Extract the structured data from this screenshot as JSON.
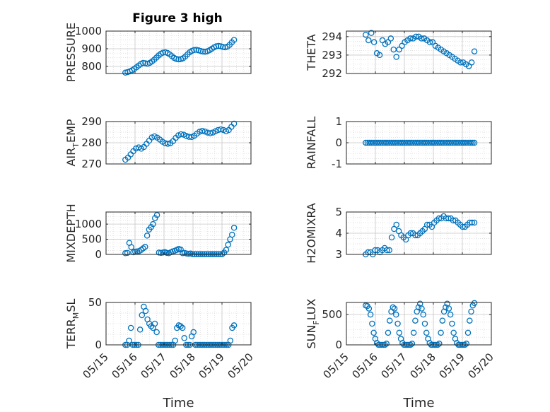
{
  "figure": {
    "title": "Figure 3 high",
    "marker_color": "#0072BD",
    "axis_color": "#262626",
    "grid": "major and minor (dotted)"
  },
  "chart_data": [
    {
      "type": "scatter",
      "ylabel_main": "PRESSURE",
      "ylabel_sub": "",
      "ylabel_tail": "",
      "yticks": [
        "800",
        "900",
        "1000"
      ],
      "ylim": [
        760,
        1000
      ],
      "show_xticks": false,
      "xlabel": "",
      "x_start": "05/15 16:00",
      "x_end": "05/19 10:00",
      "values": [
        765,
        768,
        772,
        778,
        786,
        795,
        805,
        814,
        820,
        818,
        815,
        820,
        828,
        838,
        850,
        862,
        872,
        878,
        880,
        876,
        868,
        858,
        848,
        842,
        840,
        841,
        846,
        856,
        868,
        880,
        888,
        893,
        894,
        891,
        887,
        884,
        883,
        886,
        892,
        900,
        908,
        914,
        916,
        914,
        910,
        908,
        912,
        922,
        936,
        950
      ]
    },
    {
      "type": "scatter",
      "ylabel_main": "THETA",
      "ylabel_sub": "",
      "ylabel_tail": "",
      "yticks": [
        "292",
        "293",
        "294"
      ],
      "ylim": [
        292,
        294.3
      ],
      "show_xticks": false,
      "xlabel": "",
      "x_start": "05/15 16:00",
      "x_end": "05/19 10:00",
      "values": [
        294.1,
        293.8,
        294.2,
        293.7,
        293.1,
        293.0,
        293.8,
        293.6,
        293.7,
        293.9,
        293.3,
        292.9,
        293.3,
        293.5,
        293.7,
        293.8,
        293.9,
        293.9,
        294.0,
        294.0,
        293.9,
        293.9,
        293.8,
        293.7,
        293.7,
        293.5,
        293.4,
        293.3,
        293.2,
        293.1,
        293.0,
        292.9,
        292.8,
        292.7,
        292.6,
        292.6,
        292.5,
        292.4,
        292.6,
        293.2
      ]
    },
    {
      "type": "scatter",
      "ylabel_main": "AIR",
      "ylabel_sub": "T",
      "ylabel_tail": "EMP",
      "yticks": [
        "270",
        "280",
        "290"
      ],
      "ylim": [
        270,
        290
      ],
      "show_xticks": false,
      "xlabel": "",
      "x_start": "05/15 16:00",
      "x_end": "05/19 10:00",
      "values": [
        272,
        273,
        274.5,
        276,
        277.3,
        277.8,
        277.2,
        278,
        279.5,
        281,
        282.5,
        283,
        282.4,
        281.5,
        280.5,
        279.8,
        279.5,
        279.8,
        280.8,
        282.3,
        283.5,
        284,
        283.8,
        283.2,
        282.8,
        282.7,
        283.3,
        284.3,
        285.2,
        285.6,
        285.3,
        284.8,
        284.5,
        284.8,
        285.4,
        286,
        286.3,
        286,
        285.4,
        286,
        287.5,
        289
      ]
    },
    {
      "type": "scatter",
      "ylabel_main": "RAINFALL",
      "ylabel_sub": "",
      "ylabel_tail": "",
      "yticks": [
        "-1",
        "0",
        "1"
      ],
      "ylim": [
        -1,
        1
      ],
      "show_xticks": false,
      "xlabel": "",
      "x_start": "05/15 16:00",
      "x_end": "05/19 10:00",
      "values": [
        0,
        0,
        0,
        0,
        0,
        0,
        0,
        0,
        0,
        0,
        0,
        0,
        0,
        0,
        0,
        0,
        0,
        0,
        0,
        0,
        0,
        0,
        0,
        0,
        0,
        0,
        0,
        0,
        0,
        0,
        0,
        0,
        0,
        0,
        0,
        0,
        0,
        0,
        0,
        0,
        0,
        0,
        0,
        0,
        0,
        0,
        0,
        0,
        0,
        0,
        0,
        0,
        0,
        0,
        0,
        0,
        0,
        0,
        0,
        0
      ]
    },
    {
      "type": "scatter",
      "ylabel_main": "MIXDEPTH",
      "ylabel_sub": "",
      "ylabel_tail": "",
      "yticks": [
        "0",
        "500",
        "1000"
      ],
      "ylim": [
        0,
        1400
      ],
      "show_xticks": false,
      "xlabel": "",
      "x_start": "05/15 16:00",
      "x_end": "05/19 10:00",
      "values": [
        40,
        50,
        380,
        240,
        70,
        90,
        100,
        110,
        150,
        200,
        250,
        620,
        820,
        900,
        1000,
        1200,
        1300,
        60,
        50,
        60,
        80,
        50,
        40,
        70,
        100,
        120,
        150,
        180,
        160,
        40,
        50,
        30,
        20,
        30,
        10,
        10,
        10,
        10,
        10,
        10,
        10,
        10,
        10,
        10,
        10,
        10,
        10,
        10,
        10,
        10,
        60,
        150,
        320,
        500,
        650,
        880
      ]
    },
    {
      "type": "scatter",
      "ylabel_main": "H2OMIXRA",
      "ylabel_sub": "",
      "ylabel_tail": "",
      "yticks": [
        "3",
        "4",
        "5"
      ],
      "ylim": [
        3,
        5
      ],
      "show_xticks": false,
      "xlabel": "",
      "x_start": "05/15 16:00",
      "x_end": "05/19 10:00",
      "values": [
        3.0,
        3.1,
        3.1,
        3.0,
        3.2,
        3.2,
        3.1,
        3.2,
        3.3,
        3.2,
        3.2,
        3.8,
        4.2,
        4.4,
        4.1,
        3.9,
        3.8,
        3.7,
        3.9,
        4.0,
        4.0,
        3.9,
        3.9,
        4.0,
        4.1,
        4.2,
        4.4,
        4.4,
        4.3,
        4.5,
        4.6,
        4.7,
        4.7,
        4.8,
        4.7,
        4.7,
        4.7,
        4.6,
        4.6,
        4.5,
        4.4,
        4.3,
        4.3,
        4.4,
        4.5,
        4.5,
        4.5
      ]
    },
    {
      "type": "scatter",
      "ylabel_main": "TERR",
      "ylabel_sub": "M",
      "ylabel_tail": "SL",
      "yticks": [
        "0",
        "50"
      ],
      "ylim": [
        0,
        50
      ],
      "show_xticks": true,
      "xlabel": "Time",
      "xticks": [
        "05/15",
        "05/16",
        "05/17",
        "05/18",
        "05/19",
        "05/20"
      ],
      "x_start": "05/15 16:00",
      "x_end": "05/19 10:00",
      "values": [
        0,
        0,
        5,
        20,
        0,
        0,
        0,
        0,
        18,
        35,
        45,
        40,
        30,
        25,
        22,
        20,
        25,
        15,
        0,
        0,
        0,
        0,
        0,
        0,
        0,
        0,
        0,
        5,
        20,
        23,
        22,
        20,
        8,
        0,
        0,
        0,
        10,
        15,
        0,
        0,
        0,
        0,
        0,
        0,
        0,
        0,
        0,
        0,
        0,
        0,
        0,
        0,
        0,
        0,
        0,
        0,
        0,
        5,
        20,
        23
      ]
    },
    {
      "type": "scatter",
      "ylabel_main": "SUN",
      "ylabel_sub": "F",
      "ylabel_tail": "LUX",
      "yticks": [
        "0",
        "500"
      ],
      "ylim": [
        0,
        700
      ],
      "show_xticks": true,
      "xlabel": "Time",
      "xticks": [
        "05/15",
        "05/16",
        "05/17",
        "05/18",
        "05/19",
        "05/20"
      ],
      "x_start": "05/15 16:00",
      "x_end": "05/19 10:00",
      "values": [
        650,
        640,
        600,
        500,
        350,
        200,
        100,
        30,
        0,
        0,
        0,
        0,
        0,
        20,
        200,
        400,
        550,
        620,
        600,
        500,
        350,
        200,
        100,
        30,
        0,
        0,
        0,
        0,
        0,
        20,
        200,
        400,
        550,
        620,
        680,
        600,
        500,
        350,
        200,
        100,
        30,
        0,
        0,
        0,
        0,
        0,
        20,
        200,
        400,
        550,
        620,
        680,
        600,
        500,
        350,
        200,
        100,
        30,
        0,
        0,
        0,
        0,
        0,
        20,
        200,
        400,
        550,
        650,
        690
      ]
    }
  ]
}
